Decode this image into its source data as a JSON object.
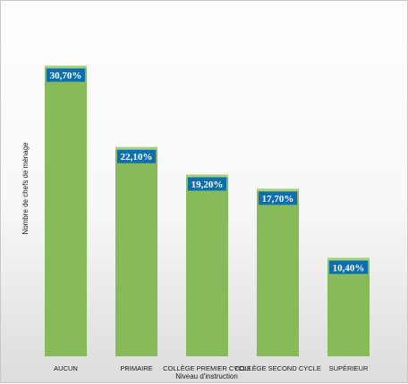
{
  "chart_data": {
    "type": "bar",
    "title": "",
    "xlabel": "Niveau d'instruction",
    "ylabel": "Nombre de chefs de ménage",
    "categories": [
      "AUCUN",
      "PRIMAIRE",
      "COLLÈGE PREMIER CYCLE",
      "COLLÈGE SECOND CYCLE",
      "SUPÉRIEUR"
    ],
    "values": [
      30.7,
      22.1,
      19.2,
      17.7,
      10.4
    ],
    "data_labels": [
      "30,70%",
      "22,10%",
      "19,20%",
      "17,70%",
      "10,40%"
    ],
    "ylim": [
      0,
      35
    ],
    "grid": false,
    "legend": "none",
    "colors": {
      "bar": "#86bb5a",
      "bar_top": "#a6d07a",
      "label_bg": "#0e6fb0"
    }
  }
}
